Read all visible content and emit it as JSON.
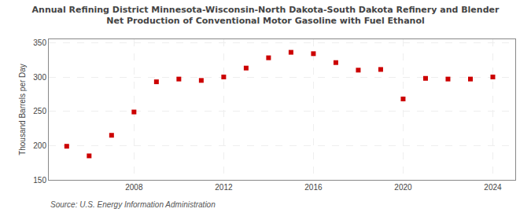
{
  "chart_data": {
    "type": "scatter",
    "title": "Annual Refining District Minnesota-Wisconsin-North Dakota-South Dakota Refinery and Blender\nNet Production of Conventional Motor Gasoline with Fuel Ethanol",
    "y_label": "Thousand Barrels per Day",
    "annotations": [
      "Source: U.S. Energy Information Administration"
    ],
    "x": [
      2005,
      2006,
      2007,
      2008,
      2009,
      2010,
      2011,
      2012,
      2013,
      2014,
      2015,
      2016,
      2017,
      2018,
      2019,
      2020,
      2021,
      2022,
      2023,
      2024
    ],
    "values": [
      199,
      185,
      215,
      249,
      293,
      297,
      295,
      300,
      313,
      328,
      336,
      334,
      321,
      310,
      311,
      268,
      298,
      297,
      297,
      300
    ],
    "color": "#CC0000",
    "marker": "square",
    "xlim": [
      2004.2,
      2025.0
    ],
    "xticks": [
      2008,
      2012,
      2016,
      2020,
      2024
    ],
    "ylim": [
      150,
      355
    ],
    "yticks": [
      150,
      200,
      250,
      300,
      350
    ],
    "grid": true
  }
}
